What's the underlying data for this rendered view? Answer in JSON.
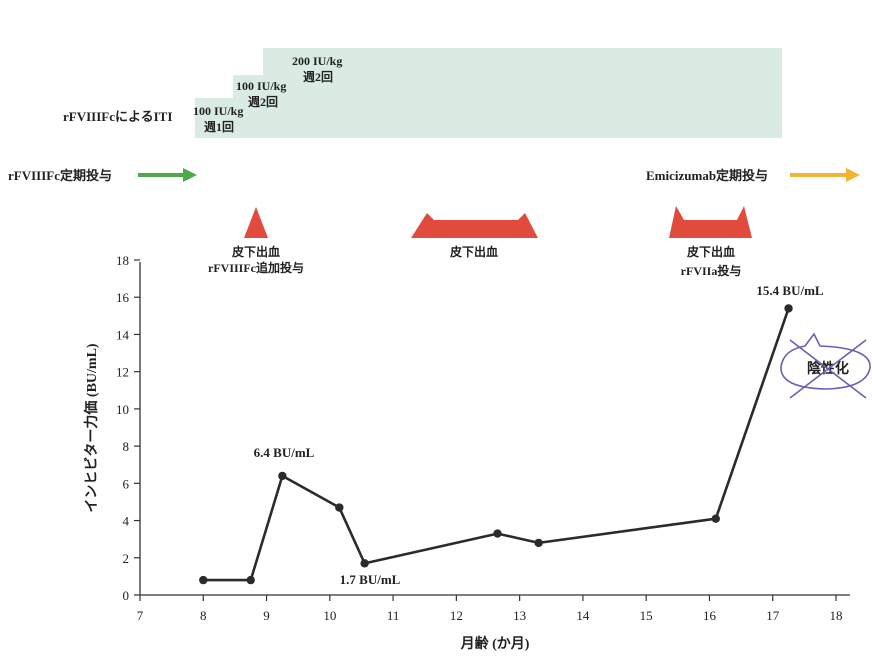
{
  "timeline": {
    "iti_label": "rFVIIIFcによるITI",
    "iti_phases": [
      {
        "dose": "100 IU/kg",
        "freq": "週1回",
        "start_month": 7.9
      },
      {
        "dose": "100 IU/kg",
        "freq": "週2回",
        "start_month": 8.4
      },
      {
        "dose": "200 IU/kg",
        "freq": "週2回",
        "start_month": 8.9,
        "end_month": 17.1
      }
    ],
    "prophylaxis_left": {
      "label": "rFVIIIFc定期投与",
      "arrow_color": "#4daa4a"
    },
    "prophylaxis_right": {
      "label": "Emicizumab定期投与",
      "arrow_color": "#f2b531"
    },
    "iti_color": "#d9ebe3"
  },
  "events": [
    {
      "label1": "皮下出血",
      "label2": "rFVIIIFc追加投与",
      "month_start": 8.7,
      "month_end": 8.7
    },
    {
      "label1": "皮下出血",
      "label2": "",
      "month_start": 11.5,
      "month_end": 13.0
    },
    {
      "label1": "皮下出血",
      "label2": "rFVIIa投与",
      "month_start": 15.5,
      "month_end": 16.6
    }
  ],
  "event_color": "#e04b3d",
  "negative_badge": {
    "label": "陰性化"
  },
  "chart_data": {
    "type": "line",
    "xlabel": "月齢 (か月)",
    "ylabel": "インヒビター力価 (BU/mL)",
    "xlim": [
      7,
      18
    ],
    "ylim": [
      0,
      18
    ],
    "x_ticks": [
      7,
      8,
      9,
      10,
      11,
      12,
      13,
      14,
      15,
      16,
      17,
      18
    ],
    "y_ticks": [
      0,
      2,
      4,
      6,
      8,
      10,
      12,
      14,
      16,
      18
    ],
    "x": [
      8.0,
      8.75,
      9.25,
      10.15,
      10.55,
      12.65,
      13.3,
      16.1,
      17.25
    ],
    "y": [
      0.8,
      0.8,
      6.4,
      4.7,
      1.7,
      3.3,
      2.8,
      4.1,
      15.4
    ],
    "annotations": [
      {
        "text": "6.4 BU/mL",
        "x": 9.25,
        "y": 6.4
      },
      {
        "text": "1.7 BU/mL",
        "x": 10.55,
        "y": 1.7
      },
      {
        "text": "15.4 BU/mL",
        "x": 17.25,
        "y": 15.4
      }
    ],
    "line_color": "#2b2b2b"
  }
}
